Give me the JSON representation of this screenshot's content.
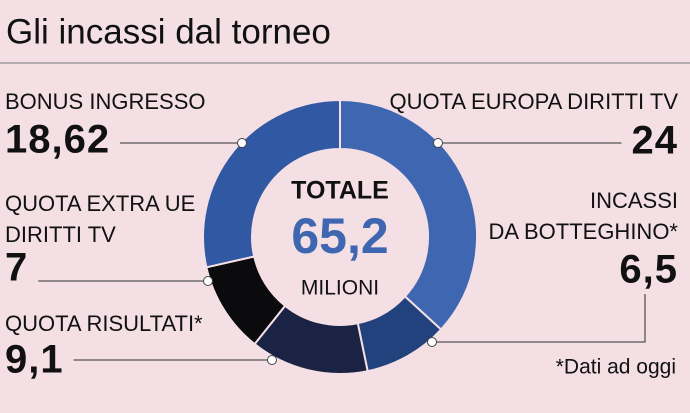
{
  "title": "Gli incassi dal torneo",
  "chart_data": {
    "type": "donut",
    "categories": [
      "QUOTA EUROPA DIRITTI TV",
      "INCASSI\nDA BOTTEGHINO*",
      "QUOTA RISULTATI*",
      "QUOTA EXTRA UE\nDIRITTI TV",
      "BONUS INGRESSO"
    ],
    "values": [
      24,
      6.5,
      9.1,
      7,
      18.62
    ],
    "value_labels": [
      "24",
      "6,5",
      "9,1",
      "7",
      "18,62"
    ],
    "colors": [
      "#3f66b0",
      "#22427e",
      "#1b2344",
      "#0b0b0d",
      "#3158a3"
    ],
    "center_title": "TOTALE",
    "total": {
      "value": 65.2,
      "label": "65,2"
    },
    "unit": "MILIONI",
    "note": "*Dati ad oggi"
  }
}
